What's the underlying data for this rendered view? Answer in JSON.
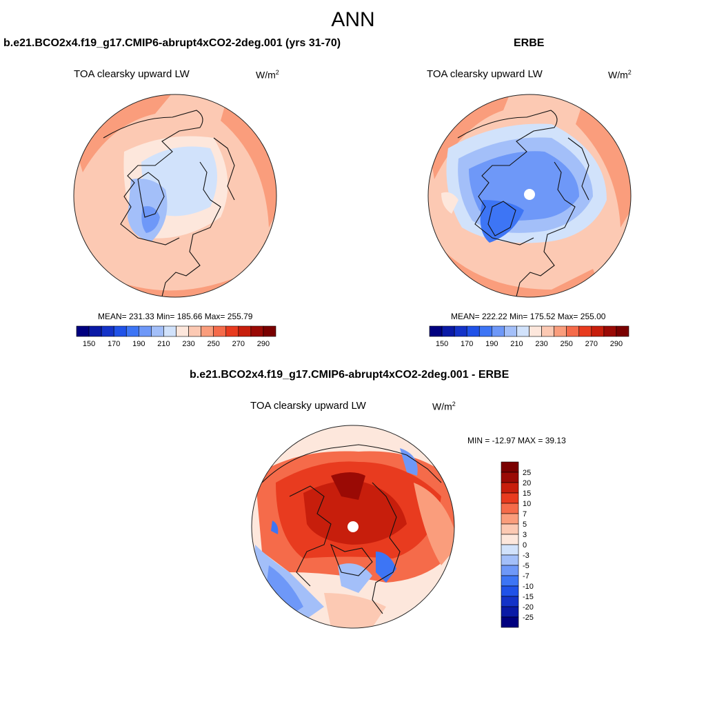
{
  "figure_title": "ANN",
  "unit_label": "W/m",
  "unit_power": "2",
  "color_scales": {
    "absolute": [
      "#00007f",
      "#0a1aa6",
      "#1433c8",
      "#2052e8",
      "#3d75f5",
      "#6e98f8",
      "#a3bff9",
      "#d1e2fb",
      "#fde7dc",
      "#fcc9b3",
      "#fa9d7c",
      "#f56b4a",
      "#e83b1f",
      "#c71e0c",
      "#9a0a05",
      "#7a0000"
    ],
    "difference": [
      "#00007f",
      "#0a1aa6",
      "#1433c8",
      "#2052e8",
      "#3d75f5",
      "#6e98f8",
      "#a3bff9",
      "#d1e2fb",
      "#fde7dc",
      "#fcc9b3",
      "#fa9d7c",
      "#f56b4a",
      "#e83b1f",
      "#c71e0c",
      "#9a0a05",
      "#7a0000"
    ]
  },
  "chart_data": [
    {
      "type": "heatmap",
      "projection": "north polar stereographic",
      "title": "b.e21.BCO2x4.f19_g17.CMIP6-abrupt4xCO2-2deg.001 (yrs 31-70)",
      "variable": "TOA clearsky upward LW",
      "stats": "MEAN= 231.33  Min= 185.66  Max= 255.79",
      "mean": 231.33,
      "min": 185.66,
      "max": 255.79,
      "colorbar": {
        "orientation": "horizontal",
        "levels": [
          140,
          150,
          160,
          170,
          180,
          190,
          200,
          210,
          220,
          230,
          240,
          250,
          260,
          270,
          280,
          290
        ],
        "tick_labels": [
          "150",
          "170",
          "190",
          "210",
          "230",
          "250",
          "270",
          "290"
        ]
      }
    },
    {
      "type": "heatmap",
      "projection": "north polar stereographic",
      "title": "ERBE",
      "variable": "TOA clearsky upward LW",
      "stats": "MEAN= 222.22  Min= 175.52  Max= 255.00",
      "mean": 222.22,
      "min": 175.52,
      "max": 255.0,
      "colorbar": {
        "orientation": "horizontal",
        "levels": [
          140,
          150,
          160,
          170,
          180,
          190,
          200,
          210,
          220,
          230,
          240,
          250,
          260,
          270,
          280,
          290
        ],
        "tick_labels": [
          "150",
          "170",
          "190",
          "210",
          "230",
          "250",
          "270",
          "290"
        ]
      }
    },
    {
      "type": "heatmap",
      "projection": "north polar stereographic",
      "title": "b.e21.BCO2x4.f19_g17.CMIP6-abrupt4xCO2-2deg.001 - ERBE",
      "variable": "TOA clearsky upward LW",
      "stats": "MIN = -12.97 MAX =  39.13",
      "min": -12.97,
      "max": 39.13,
      "colorbar": {
        "orientation": "vertical",
        "levels": [
          -30,
          -25,
          -20,
          -15,
          -10,
          -7,
          -5,
          -3,
          0,
          3,
          5,
          7,
          10,
          15,
          20,
          25
        ],
        "tick_labels": [
          "25",
          "20",
          "15",
          "10",
          "7",
          "5",
          "3",
          "0",
          "-3",
          "-5",
          "-7",
          "-10",
          "-15",
          "-20",
          "-25"
        ]
      }
    }
  ]
}
